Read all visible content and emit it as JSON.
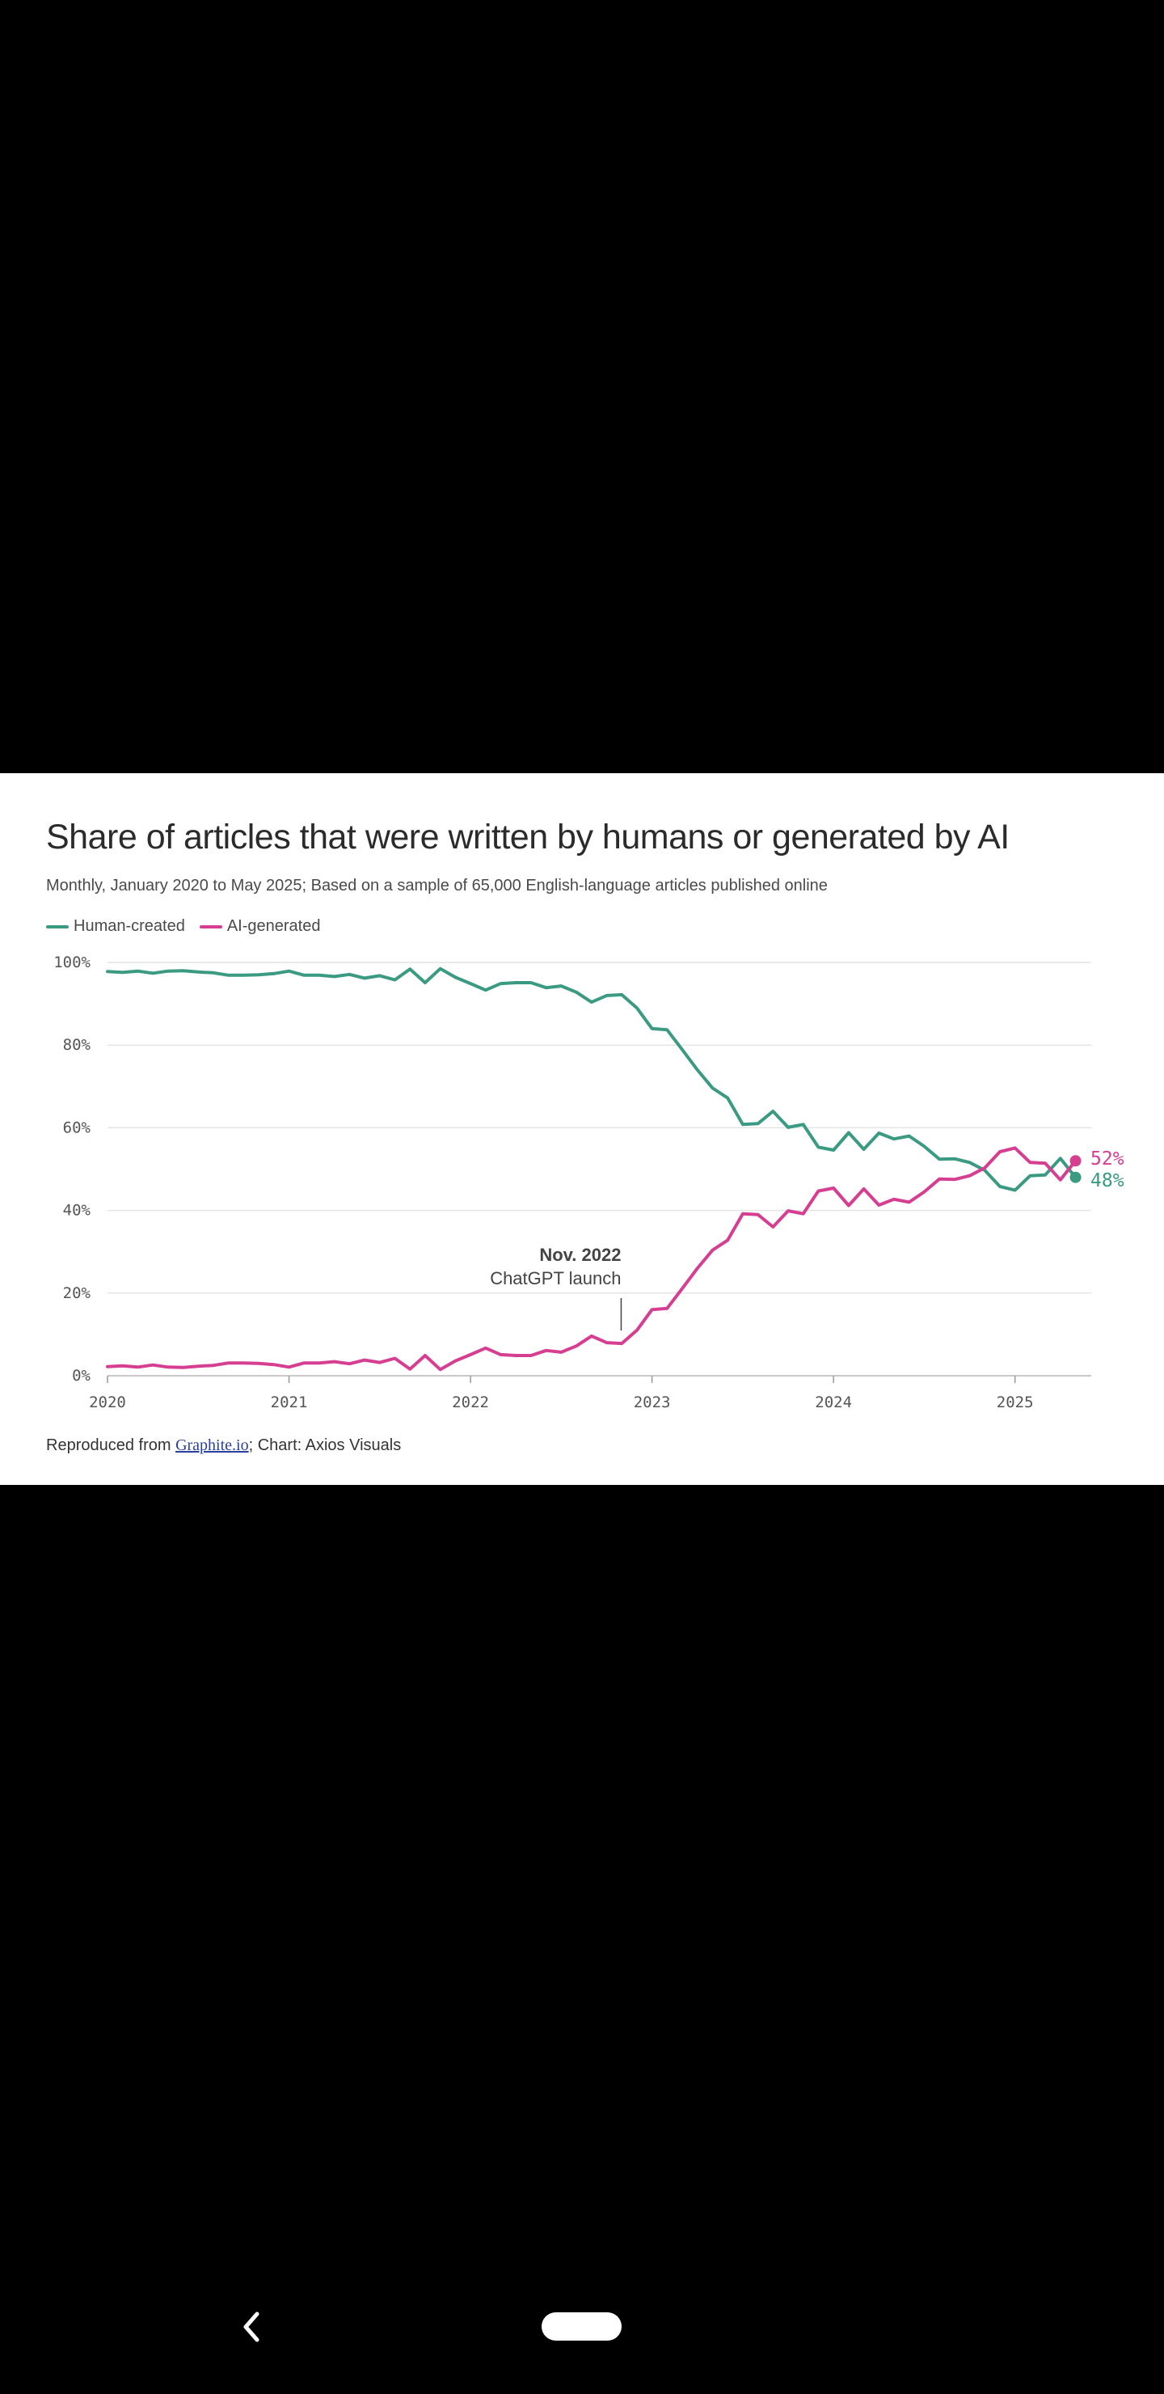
{
  "chart_data": {
    "type": "line",
    "title": "Share of articles that were written by humans or generated by AI",
    "subtitle": "Monthly, January 2020 to May 2025; Based on a sample of 65,000 English-language articles published online",
    "source_prefix": "Reproduced from ",
    "source_link": "Graphite.io",
    "source_suffix": "; Chart: Axios Visuals",
    "xlabel": "",
    "ylabel": "",
    "x_start": 2020.0,
    "x_step_months": 1,
    "xlim": [
      2020,
      2025.42
    ],
    "ylim": [
      0,
      100
    ],
    "yticks": [
      0,
      20,
      40,
      60,
      80,
      100
    ],
    "ytick_labels": [
      "0%",
      "20%",
      "40%",
      "60%",
      "80%",
      "100%"
    ],
    "xticks": [
      2020,
      2021,
      2022,
      2023,
      2024,
      2025
    ],
    "xtick_labels": [
      "2020",
      "2021",
      "2022",
      "2023",
      "2024",
      "2025"
    ],
    "grid": true,
    "legend_position": "top-left",
    "series": [
      {
        "name": "Human-created",
        "color": "#3a9a82",
        "values": [
          97.8,
          97.6,
          97.9,
          97.4,
          97.9,
          98.0,
          97.7,
          97.5,
          96.9,
          96.9,
          97.0,
          97.3,
          97.9,
          96.9,
          96.9,
          96.6,
          97.1,
          96.2,
          96.8,
          95.8,
          98.4,
          95.1,
          98.5,
          96.4,
          94.9,
          93.3,
          94.9,
          95.1,
          95.1,
          93.9,
          94.3,
          92.8,
          90.4,
          92.0,
          92.2,
          89.0,
          84.0,
          83.7,
          78.9,
          74.0,
          69.6,
          67.2,
          60.8,
          61.0,
          64.0,
          60.1,
          60.8,
          55.3,
          54.6,
          58.8,
          54.8,
          58.7,
          57.3,
          58.0,
          55.5,
          52.4,
          52.5,
          51.6,
          49.7,
          45.8,
          44.9,
          48.4,
          48.6,
          52.6,
          48.0
        ]
      },
      {
        "name": "AI-generated",
        "color": "#d63e92",
        "values": [
          2.2,
          2.4,
          2.1,
          2.6,
          2.1,
          2.0,
          2.3,
          2.5,
          3.1,
          3.1,
          3.0,
          2.7,
          2.1,
          3.1,
          3.1,
          3.4,
          2.9,
          3.8,
          3.2,
          4.2,
          1.6,
          4.9,
          1.5,
          3.6,
          5.1,
          6.7,
          5.1,
          4.9,
          4.9,
          6.1,
          5.7,
          7.2,
          9.6,
          8.0,
          7.8,
          11.0,
          16.0,
          16.3,
          21.1,
          26.0,
          30.4,
          32.8,
          39.2,
          39.0,
          36.0,
          39.9,
          39.2,
          44.7,
          45.4,
          41.2,
          45.2,
          41.3,
          42.7,
          42.0,
          44.5,
          47.6,
          47.5,
          48.4,
          50.3,
          54.2,
          55.1,
          51.6,
          51.4,
          47.4,
          52.0
        ]
      }
    ],
    "end_labels": [
      "52%",
      "48%"
    ],
    "annotation": {
      "x": 2022.83,
      "y": 10,
      "line1": "Nov. 2022",
      "line2": "ChatGPT launch"
    }
  }
}
